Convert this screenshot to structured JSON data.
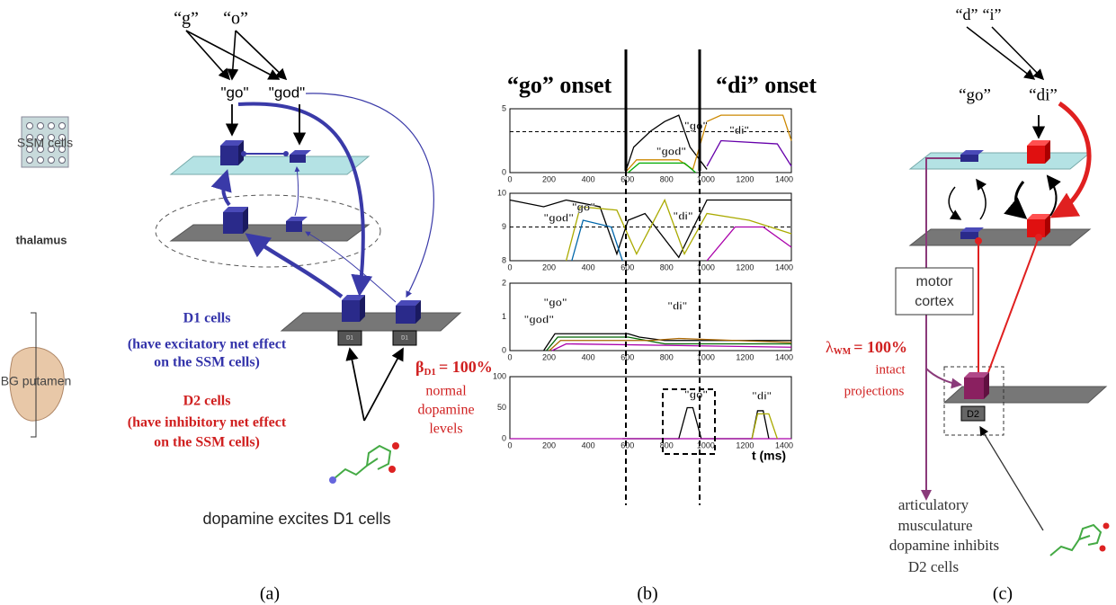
{
  "panel_a": {
    "inputs": [
      "“g”",
      "“o”"
    ],
    "words": [
      "\"go\"",
      "\"god\""
    ],
    "ssm_label": "SSM cells",
    "thalamus": "thalamus",
    "bg_label": "BG putamen",
    "d1_title": "D1 cells",
    "d1_desc": [
      "(have excitatory net effect",
      "on the SSM cells)"
    ],
    "d2_title": "D2 cells",
    "d2_desc": [
      "(have inhibitory net effect",
      "on the SSM cells)"
    ],
    "box_labels": [
      "D1",
      "D1"
    ],
    "beta": {
      "symbol": "β",
      "sub": "D1",
      "value": "= 100%"
    },
    "dopamine_note": [
      "normal",
      "dopamine",
      "levels"
    ],
    "caption": "dopamine excites D1 cells",
    "label": "(a)"
  },
  "panel_b": {
    "onsets": [
      "“go” onset",
      "“di” onset"
    ],
    "xticks": [
      0,
      200,
      400,
      600,
      800,
      1000,
      1200,
      1400
    ],
    "plots": [
      {
        "yticks": [
          0,
          5
        ],
        "labels": [
          "\"go\"",
          "\"god\"",
          "\"di\""
        ]
      },
      {
        "yticks": [
          8,
          9,
          10
        ],
        "labels": [
          "\"go\"",
          "\"god\"",
          "\"di\""
        ]
      },
      {
        "yticks": [
          0,
          1,
          2
        ],
        "labels": [
          "\"go\"",
          "\"god\"",
          "\"di\""
        ]
      },
      {
        "yticks": [
          0,
          50,
          100
        ],
        "labels": [
          "\"go\"",
          "\"di\""
        ]
      }
    ],
    "xlabel": "t (ms)",
    "label": "(b)"
  },
  "panel_c": {
    "inputs": [
      "“d”",
      "“i”"
    ],
    "words": [
      "“go”",
      "“di”"
    ],
    "motor_cortex": [
      "motor",
      "cortex"
    ],
    "lambda": {
      "symbol": "λ",
      "sub": "WM",
      "value": "= 100%"
    },
    "projections": [
      "intact",
      "projections"
    ],
    "box_label": "D2",
    "output": [
      "articulatory",
      "musculature"
    ],
    "dopamine": [
      "dopamine inhibits",
      "D2 cells"
    ],
    "label": "(c)"
  }
}
